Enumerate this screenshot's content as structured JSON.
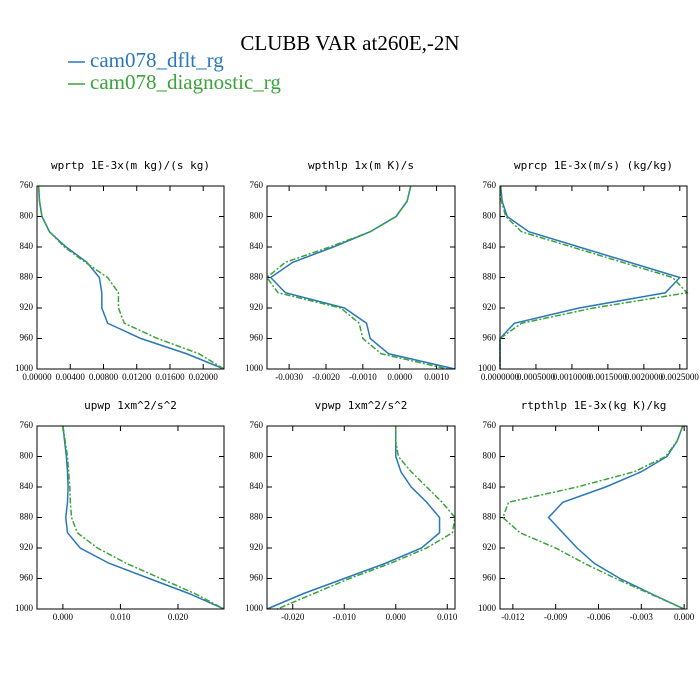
{
  "title": "CLUBB VAR at260E,-2N",
  "chart_data": [
    {
      "type": "line",
      "title": "wprtp  1E-3x(m kg)/(s kg)",
      "y": [
        760,
        780,
        800,
        820,
        840,
        860,
        880,
        900,
        920,
        940,
        960,
        980,
        1000
      ],
      "ylim": [
        760,
        1000
      ],
      "y_inverted": true,
      "yticks": [
        760,
        800,
        840,
        880,
        920,
        960,
        1000
      ],
      "xlim": [
        0,
        0.0225
      ],
      "xticks": [
        {
          "value": 0,
          "label": "0.00000"
        },
        {
          "value": 0.004,
          "label": "0.00400"
        },
        {
          "value": 0.008,
          "label": "0.00800"
        },
        {
          "value": 0.012,
          "label": "0.01200"
        },
        {
          "value": 0.016,
          "label": "0.01600"
        },
        {
          "value": 0.02,
          "label": "0.02000"
        }
      ],
      "series": [
        {
          "name": "cam078_dflt_rg",
          "color": "#2a78b8",
          "dashed": false,
          "values": [
            0.0002,
            0.0003,
            0.0006,
            0.0015,
            0.0035,
            0.006,
            0.0075,
            0.0078,
            0.0078,
            0.0085,
            0.0125,
            0.018,
            0.0225
          ]
        },
        {
          "name": "cam078_diagnostic_rg",
          "color": "#3aa33a",
          "dashed": true,
          "values": [
            0.0002,
            0.0003,
            0.0006,
            0.0015,
            0.0033,
            0.0058,
            0.0085,
            0.0098,
            0.0098,
            0.0105,
            0.0145,
            0.0195,
            0.0225
          ]
        }
      ]
    },
    {
      "type": "line",
      "title": "wpthlp  1x(m K)/s",
      "y": [
        760,
        780,
        800,
        820,
        840,
        860,
        880,
        900,
        920,
        940,
        960,
        980,
        1000
      ],
      "ylim": [
        760,
        1000
      ],
      "y_inverted": true,
      "yticks": [
        760,
        800,
        840,
        880,
        920,
        960,
        1000
      ],
      "xlim": [
        -0.0036,
        0.0015
      ],
      "xticks": [
        {
          "value": -0.003,
          "label": "-0.0030"
        },
        {
          "value": -0.002,
          "label": "-0.0020"
        },
        {
          "value": -0.001,
          "label": "-0.0010"
        },
        {
          "value": 0,
          "label": "0.0000"
        },
        {
          "value": 0.001,
          "label": "0.0010"
        }
      ],
      "series": [
        {
          "name": "cam078_dflt_rg",
          "color": "#2a78b8",
          "dashed": false,
          "values": [
            0.0003,
            0.0002,
            -0.0001,
            -0.0008,
            -0.0018,
            -0.0029,
            -0.0035,
            -0.0031,
            -0.0015,
            -0.0009,
            -0.0008,
            -0.0003,
            0.0015
          ]
        },
        {
          "name": "cam078_diagnostic_rg",
          "color": "#3aa33a",
          "dashed": true,
          "values": [
            0.0003,
            0.0002,
            -0.0001,
            -0.0008,
            -0.0019,
            -0.0031,
            -0.0036,
            -0.0033,
            -0.0016,
            -0.0011,
            -0.001,
            -0.0005,
            0.0013
          ]
        }
      ]
    },
    {
      "type": "line",
      "title": "wprcp  1E-3x(m/s) (kg/kg)",
      "y": [
        760,
        780,
        800,
        820,
        840,
        860,
        880,
        900,
        920,
        940,
        960,
        980,
        1000
      ],
      "ylim": [
        760,
        1000
      ],
      "y_inverted": true,
      "yticks": [
        760,
        800,
        840,
        880,
        920,
        960,
        1000
      ],
      "xlim": [
        0,
        0.0026
      ],
      "xticks": [
        {
          "value": 0,
          "label": "0.0000000"
        },
        {
          "value": 0.0005,
          "label": "0.0005000"
        },
        {
          "value": 0.001,
          "label": "0.0010000"
        },
        {
          "value": 0.0015,
          "label": "0.0015000"
        },
        {
          "value": 0.002,
          "label": "0.0020000"
        },
        {
          "value": 0.0025,
          "label": "0.0025000"
        }
      ],
      "series": [
        {
          "name": "cam078_dflt_rg",
          "color": "#2a78b8",
          "dashed": false,
          "values": [
            1e-05,
            3e-05,
            0.0001,
            0.0004,
            0.0011,
            0.0018,
            0.0025,
            0.0023,
            0.0011,
            0.0002,
            0,
            0,
            0
          ]
        },
        {
          "name": "cam078_diagnostic_rg",
          "color": "#3aa33a",
          "dashed": true,
          "values": [
            1e-05,
            2e-05,
            8e-05,
            0.0003,
            0.001,
            0.0017,
            0.0024,
            0.0026,
            0.0013,
            0.0003,
            0,
            0,
            0
          ]
        }
      ]
    },
    {
      "type": "line",
      "title": "upwp  1xm^2/s^2",
      "y": [
        760,
        780,
        800,
        820,
        840,
        860,
        880,
        900,
        920,
        940,
        960,
        980,
        1000
      ],
      "ylim": [
        760,
        1000
      ],
      "y_inverted": true,
      "yticks": [
        760,
        800,
        840,
        880,
        920,
        960,
        1000
      ],
      "xlim": [
        -0.0045,
        0.028
      ],
      "xticks": [
        {
          "value": 0,
          "label": "0.000"
        },
        {
          "value": 0.01,
          "label": "0.010"
        },
        {
          "value": 0.02,
          "label": "0.020"
        }
      ],
      "series": [
        {
          "name": "cam078_dflt_rg",
          "color": "#2a78b8",
          "dashed": false,
          "values": [
            0,
            0.0003,
            0.0006,
            0.0008,
            0.0009,
            0.0008,
            0.0005,
            0.0008,
            0.003,
            0.008,
            0.015,
            0.022,
            0.028
          ]
        },
        {
          "name": "cam078_diagnostic_rg",
          "color": "#3aa33a",
          "dashed": true,
          "values": [
            0,
            0.0004,
            0.0008,
            0.001,
            0.0012,
            0.0013,
            0.0015,
            0.0025,
            0.006,
            0.011,
            0.017,
            0.023,
            0.028
          ]
        }
      ]
    },
    {
      "type": "line",
      "title": "vpwp  1xm^2/s^2",
      "y": [
        760,
        780,
        800,
        820,
        840,
        860,
        880,
        900,
        920,
        940,
        960,
        980,
        1000
      ],
      "ylim": [
        760,
        1000
      ],
      "y_inverted": true,
      "yticks": [
        760,
        800,
        840,
        880,
        920,
        960,
        1000
      ],
      "xlim": [
        -0.025,
        0.0115
      ],
      "xticks": [
        {
          "value": -0.02,
          "label": "-0.020"
        },
        {
          "value": -0.01,
          "label": "-0.010"
        },
        {
          "value": 0,
          "label": "0.000"
        },
        {
          "value": 0.01,
          "label": "0.010"
        }
      ],
      "series": [
        {
          "name": "cam078_dflt_rg",
          "color": "#2a78b8",
          "dashed": false,
          "values": [
            0,
            0,
            0,
            0.001,
            0.003,
            0.006,
            0.0085,
            0.0085,
            0.005,
            -0.002,
            -0.01,
            -0.018,
            -0.025
          ]
        },
        {
          "name": "cam078_diagnostic_rg",
          "color": "#3aa33a",
          "dashed": true,
          "values": [
            0,
            0,
            0.0005,
            0.003,
            0.006,
            0.009,
            0.0115,
            0.011,
            0.006,
            -0.001,
            -0.009,
            -0.016,
            -0.023
          ]
        }
      ]
    },
    {
      "type": "line",
      "title": "rtpthlp  1E-3x(kg K)/kg",
      "y": [
        760,
        780,
        800,
        820,
        840,
        860,
        880,
        900,
        920,
        940,
        960,
        980,
        1000
      ],
      "ylim": [
        760,
        1000
      ],
      "y_inverted": true,
      "yticks": [
        760,
        800,
        840,
        880,
        920,
        960,
        1000
      ],
      "xlim": [
        -0.0129,
        0.0002
      ],
      "xticks": [
        {
          "value": -0.012,
          "label": "-0.012"
        },
        {
          "value": -0.009,
          "label": "-0.009"
        },
        {
          "value": -0.006,
          "label": "-0.006"
        },
        {
          "value": -0.003,
          "label": "-0.003"
        },
        {
          "value": 0,
          "label": "0.000"
        }
      ],
      "series": [
        {
          "name": "cam078_dflt_rg",
          "color": "#2a78b8",
          "dashed": false,
          "values": [
            -0.0001,
            -0.0005,
            -0.0012,
            -0.003,
            -0.0055,
            -0.0085,
            -0.0095,
            -0.0085,
            -0.0075,
            -0.0063,
            -0.0045,
            -0.0023,
            0
          ]
        },
        {
          "name": "cam078_diagnostic_rg",
          "color": "#3aa33a",
          "dashed": true,
          "values": [
            -0.0001,
            -0.0005,
            -0.0013,
            -0.0035,
            -0.0075,
            -0.0123,
            -0.0127,
            -0.0115,
            -0.009,
            -0.007,
            -0.0048,
            -0.0024,
            0
          ]
        }
      ]
    }
  ]
}
